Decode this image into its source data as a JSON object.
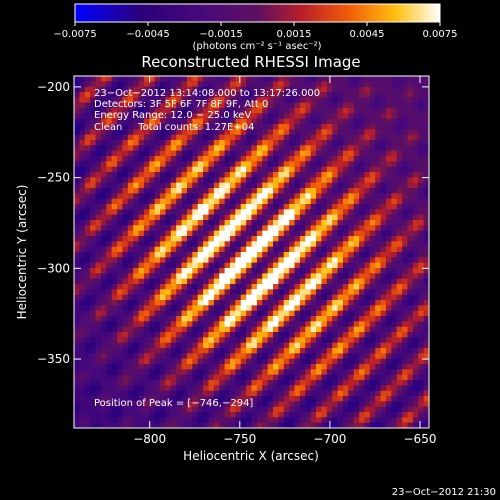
{
  "chart_data": {
    "type": "heatmap",
    "title": "Reconstructed RHESSI Image",
    "xlabel": "Heliocentric X (arcsec)",
    "ylabel": "Heliocentric Y (arcsec)",
    "xlim": [
      -842,
      -645
    ],
    "ylim": [
      -388,
      -194
    ],
    "x_ticks": [
      -800,
      -750,
      -700,
      -650
    ],
    "y_ticks": [
      -350,
      -300,
      -250,
      -200
    ],
    "x_tick_labels": [
      "−800",
      "−750",
      "−700",
      "−650"
    ],
    "y_tick_labels": [
      "−350",
      "−300",
      "−250",
      "−200"
    ],
    "peak": {
      "x": -746,
      "y": -294
    },
    "colorbar": {
      "range": [
        -0.0075,
        0.0075
      ],
      "ticks": [
        -0.0075,
        -0.0045,
        -0.0015,
        0.0015,
        0.0045,
        0.0075
      ],
      "tick_labels": [
        "−0.0075",
        "−0.0045",
        "−0.0015",
        "0.0015",
        "0.0045",
        "0.0075"
      ],
      "unit_label": "(photons cm⁻² s⁻¹ asec⁻²)"
    },
    "annotations": [
      "23−Oct−2012 13:14:08.000 to 13:17:26.000",
      "Detectors: 3F 5F 6F 7F 8F 9F, Att 0",
      "Energy Range: 12.0 − 25.0 keV",
      "Clean     Total counts: 1.27E+04"
    ],
    "peak_label": "Position of Peak = [−746,−294]",
    "timestamp": "23−Oct−2012 21:30",
    "grid": false
  }
}
